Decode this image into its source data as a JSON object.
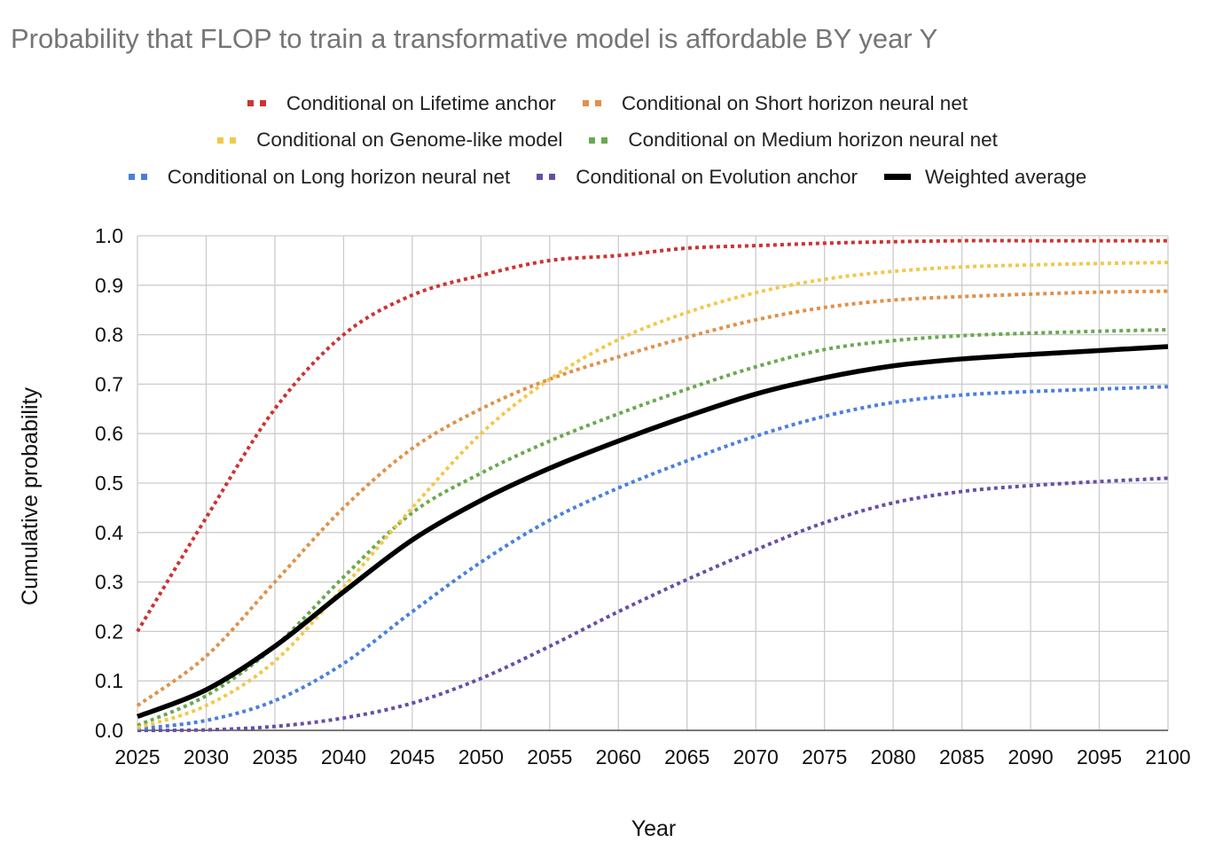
{
  "chart_data": {
    "type": "line",
    "title": "Probability that FLOP to train a transformative model is affordable BY year Y",
    "xlabel": "Year",
    "ylabel": "Cumulative probability",
    "xlim": [
      2025,
      2100
    ],
    "ylim": [
      0,
      1.0
    ],
    "grid": true,
    "legend_position": "top",
    "x": [
      2025,
      2030,
      2035,
      2040,
      2045,
      2050,
      2055,
      2060,
      2065,
      2070,
      2075,
      2080,
      2085,
      2090,
      2095,
      2100
    ],
    "x_tick_labels": [
      "2025",
      "2030",
      "2035",
      "2040",
      "2045",
      "2050",
      "2055",
      "2060",
      "2065",
      "2070",
      "2075",
      "2080",
      "2085",
      "2090",
      "2095",
      "2100"
    ],
    "y_ticks": [
      0,
      0.1,
      0.2,
      0.3,
      0.4,
      0.5,
      0.6,
      0.7,
      0.8,
      0.9,
      1.0
    ],
    "y_tick_labels": [
      "0.0",
      "0.1",
      "0.2",
      "0.3",
      "0.4",
      "0.5",
      "0.6",
      "0.7",
      "0.8",
      "0.9",
      "1.0"
    ],
    "series": [
      {
        "name": "Conditional on Lifetime anchor",
        "color": "#cc3333",
        "style": "dotted",
        "values": [
          0.2,
          0.43,
          0.65,
          0.8,
          0.88,
          0.92,
          0.95,
          0.96,
          0.975,
          0.98,
          0.985,
          0.988,
          0.99,
          0.99,
          0.99,
          0.99
        ]
      },
      {
        "name": "Conditional on Short horizon neural net",
        "color": "#e0914a",
        "style": "dotted",
        "values": [
          0.05,
          0.15,
          0.3,
          0.45,
          0.57,
          0.65,
          0.71,
          0.755,
          0.795,
          0.83,
          0.855,
          0.87,
          0.877,
          0.882,
          0.886,
          0.888
        ]
      },
      {
        "name": "Conditional on Genome-like model",
        "color": "#f2c84b",
        "style": "dotted",
        "values": [
          0.005,
          0.05,
          0.14,
          0.29,
          0.45,
          0.6,
          0.71,
          0.79,
          0.845,
          0.885,
          0.912,
          0.928,
          0.937,
          0.941,
          0.944,
          0.946
        ]
      },
      {
        "name": "Conditional on Medium horizon neural net",
        "color": "#6aa84f",
        "style": "dotted",
        "values": [
          0.01,
          0.07,
          0.17,
          0.31,
          0.44,
          0.52,
          0.585,
          0.64,
          0.69,
          0.735,
          0.77,
          0.788,
          0.798,
          0.803,
          0.807,
          0.81
        ]
      },
      {
        "name": "Conditional on Long horizon neural net",
        "color": "#4a7fdc",
        "style": "dotted",
        "values": [
          0.003,
          0.02,
          0.06,
          0.135,
          0.24,
          0.34,
          0.425,
          0.49,
          0.545,
          0.595,
          0.635,
          0.663,
          0.678,
          0.685,
          0.69,
          0.695
        ]
      },
      {
        "name": "Conditional on Evolution anchor",
        "color": "#674ea7",
        "style": "dotted",
        "values": [
          0.0,
          0.001,
          0.008,
          0.025,
          0.055,
          0.105,
          0.17,
          0.24,
          0.305,
          0.365,
          0.42,
          0.46,
          0.483,
          0.495,
          0.503,
          0.51
        ]
      },
      {
        "name": "Weighted average",
        "color": "#000000",
        "style": "solid",
        "values": [
          0.028,
          0.082,
          0.17,
          0.28,
          0.385,
          0.465,
          0.53,
          0.585,
          0.635,
          0.68,
          0.713,
          0.737,
          0.751,
          0.76,
          0.768,
          0.776
        ]
      }
    ],
    "legend_rows": [
      [
        0,
        1
      ],
      [
        2,
        3
      ],
      [
        4,
        5,
        6
      ]
    ]
  }
}
